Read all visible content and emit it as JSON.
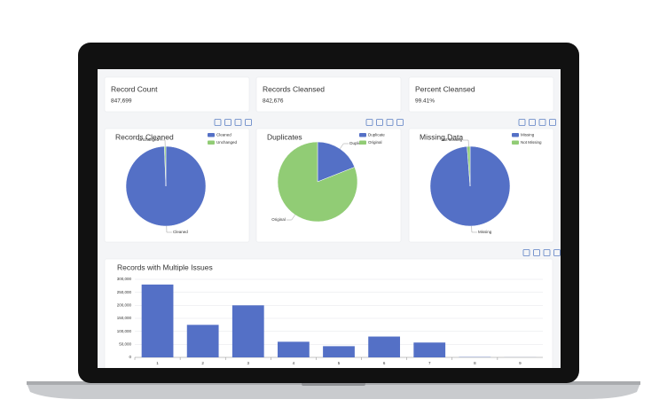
{
  "kpis": [
    {
      "label": "Record Count",
      "value": "847,699"
    },
    {
      "label": "Records Cleansed",
      "value": "842,676"
    },
    {
      "label": "Percent Cleansed",
      "value": "99.41%"
    }
  ],
  "chart_data": [
    {
      "type": "pie",
      "title": "Records Cleaned",
      "categories": [
        "Cleaned",
        "Unchanged"
      ],
      "values": [
        842676,
        5023
      ],
      "colors": [
        "#5470c6",
        "#91cc75"
      ]
    },
    {
      "type": "pie",
      "title": "Duplicates",
      "categories": [
        "Duplicate",
        "Original"
      ],
      "values": [
        19,
        81
      ],
      "colors": [
        "#5470c6",
        "#91cc75"
      ]
    },
    {
      "type": "pie",
      "title": "Missing Data",
      "categories": [
        "Missing",
        "Not Missing"
      ],
      "values": [
        98.8,
        1.2
      ],
      "colors": [
        "#5470c6",
        "#91cc75"
      ]
    },
    {
      "type": "bar",
      "title": "Records with Multiple Issues",
      "categories": [
        "1",
        "2",
        "3",
        "4",
        "5",
        "6",
        "7",
        "8",
        "9"
      ],
      "values": [
        280000,
        125000,
        200000,
        60000,
        43000,
        80000,
        57000,
        1000,
        200
      ],
      "color": "#5470c6",
      "ylim": [
        0,
        300000
      ],
      "yticks": [
        0,
        {
          "value": 50000,
          "label": "50,000"
        },
        {
          "value": 100000,
          "label": "100,000"
        },
        {
          "value": 150000,
          "label": "150,000"
        },
        {
          "value": 200000,
          "label": "200,000"
        },
        {
          "value": 250000,
          "label": "250,000"
        },
        {
          "value": 300000,
          "label": "300,000"
        }
      ],
      "grid": true
    }
  ]
}
